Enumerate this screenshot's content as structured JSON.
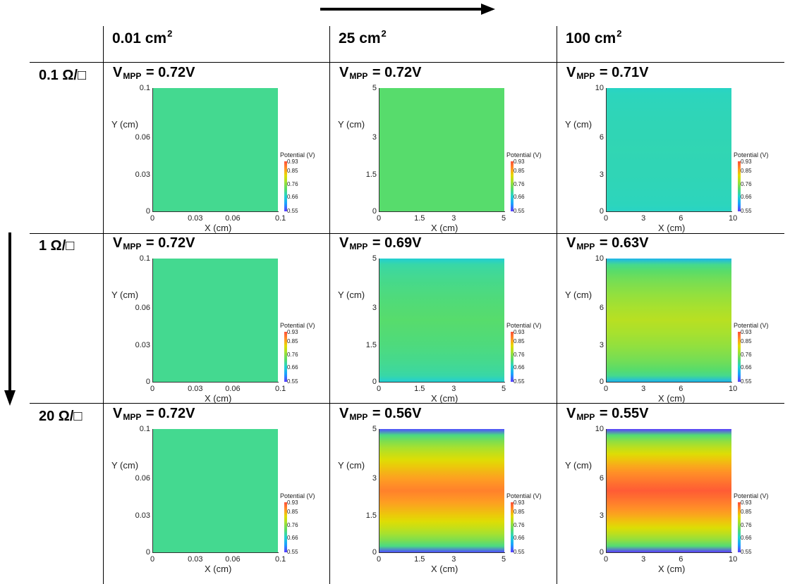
{
  "columns": [
    {
      "area": "0.01 cm",
      "exp": "2"
    },
    {
      "area": "25 cm",
      "exp": "2"
    },
    {
      "area": "100 cm",
      "exp": "2"
    }
  ],
  "rows": [
    {
      "label": "0.1 Ω/□"
    },
    {
      "label": "1 Ω/□"
    },
    {
      "label": "20 Ω/□"
    }
  ],
  "vmpp_symbol": "V",
  "vmpp_subscript": "MPP",
  "colorbar": {
    "title": "Potential (V)",
    "ticks": [
      "0.93",
      "0.85",
      "0.76",
      "0.66",
      "0.55"
    ],
    "min": 0.55,
    "max": 0.93
  },
  "axes": {
    "xlabel": "X (cm)",
    "ylabel": "Y (cm)",
    "col_xticks": [
      [
        "0",
        "0.03",
        "0.06",
        "0.1"
      ],
      [
        "0",
        "1.5",
        "3",
        "5"
      ],
      [
        "0",
        "3",
        "6",
        "10"
      ]
    ],
    "col_yticks": [
      [
        "0",
        "0.03",
        "0.06",
        "0.1"
      ],
      [
        "0",
        "1.5",
        "3",
        "5"
      ],
      [
        "0",
        "3",
        "6",
        "10"
      ]
    ]
  },
  "chart_data": [
    {
      "type": "heatmap",
      "area": "0.01 cm2",
      "sheet_resistance": "0.1 Ω/□",
      "vmpp_text": "= 0.72V",
      "xlim": [
        0,
        0.1
      ],
      "ylim": [
        0,
        0.1
      ],
      "potential_center": 0.7,
      "potential_edge": 0.7
    },
    {
      "type": "heatmap",
      "area": "25 cm2",
      "sheet_resistance": "0.1 Ω/□",
      "vmpp_text": "= 0.72V",
      "xlim": [
        0,
        5
      ],
      "ylim": [
        0,
        5
      ],
      "potential_center": 0.72,
      "potential_edge": 0.72
    },
    {
      "type": "heatmap",
      "area": "100 cm2",
      "sheet_resistance": "0.1 Ω/□",
      "vmpp_text": "= 0.71V",
      "xlim": [
        0,
        10
      ],
      "ylim": [
        0,
        10
      ],
      "potential_center": 0.68,
      "potential_edge": 0.67
    },
    {
      "type": "heatmap",
      "area": "0.01 cm2",
      "sheet_resistance": "1 Ω/□",
      "vmpp_text": "= 0.72V",
      "xlim": [
        0,
        0.1
      ],
      "ylim": [
        0,
        0.1
      ],
      "potential_center": 0.7,
      "potential_edge": 0.7
    },
    {
      "type": "heatmap",
      "area": "25 cm2",
      "sheet_resistance": "1 Ω/□",
      "vmpp_text": "= 0.69V",
      "xlim": [
        0,
        5
      ],
      "ylim": [
        0,
        5
      ],
      "potential_center": 0.72,
      "potential_edge": 0.66
    },
    {
      "type": "heatmap",
      "area": "100 cm2",
      "sheet_resistance": "1 Ω/□",
      "vmpp_text": "= 0.63V",
      "xlim": [
        0,
        10
      ],
      "ylim": [
        0,
        10
      ],
      "potential_center": 0.79,
      "potential_edge": 0.63
    },
    {
      "type": "heatmap",
      "area": "0.01 cm2",
      "sheet_resistance": "20 Ω/□",
      "vmpp_text": "= 0.72V",
      "xlim": [
        0,
        0.1
      ],
      "ylim": [
        0,
        0.1
      ],
      "potential_center": 0.7,
      "potential_edge": 0.7
    },
    {
      "type": "heatmap",
      "area": "25 cm2",
      "sheet_resistance": "20 Ω/□",
      "vmpp_text": "= 0.56V",
      "xlim": [
        0,
        5
      ],
      "ylim": [
        0,
        5
      ],
      "potential_center": 0.89,
      "potential_edge": 0.56
    },
    {
      "type": "heatmap",
      "area": "100 cm2",
      "sheet_resistance": "20 Ω/□",
      "vmpp_text": "= 0.55V",
      "xlim": [
        0,
        10
      ],
      "ylim": [
        0,
        10
      ],
      "potential_center": 0.92,
      "potential_edge": 0.55
    }
  ]
}
